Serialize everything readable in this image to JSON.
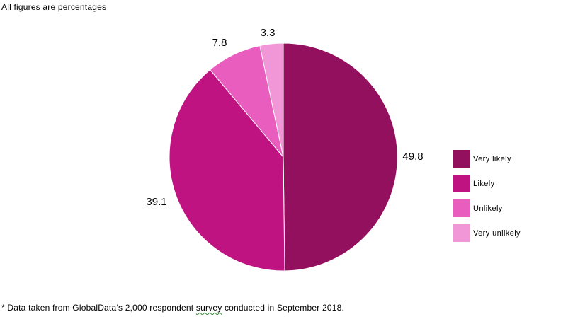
{
  "chart_data": {
    "type": "pie",
    "subtitle": "All figures are percentages",
    "slices": [
      {
        "label": "Very likely",
        "value": 49.8,
        "value_label": "49.8",
        "color": "#93105f"
      },
      {
        "label": "Likely",
        "value": 39.1,
        "value_label": "39.1",
        "color": "#c01382"
      },
      {
        "label": "Unlikely",
        "value": 7.8,
        "value_label": "7.8",
        "color": "#e85dbd"
      },
      {
        "label": "Very unlikely",
        "value": 3.3,
        "value_label": "3.3",
        "color": "#f196d6"
      }
    ],
    "legend_position": "right"
  },
  "footnote": {
    "before": "* Data taken from GlobalData’s 2,000 respondent ",
    "flagged_word": "survey",
    "after": " conducted in September 2018."
  }
}
